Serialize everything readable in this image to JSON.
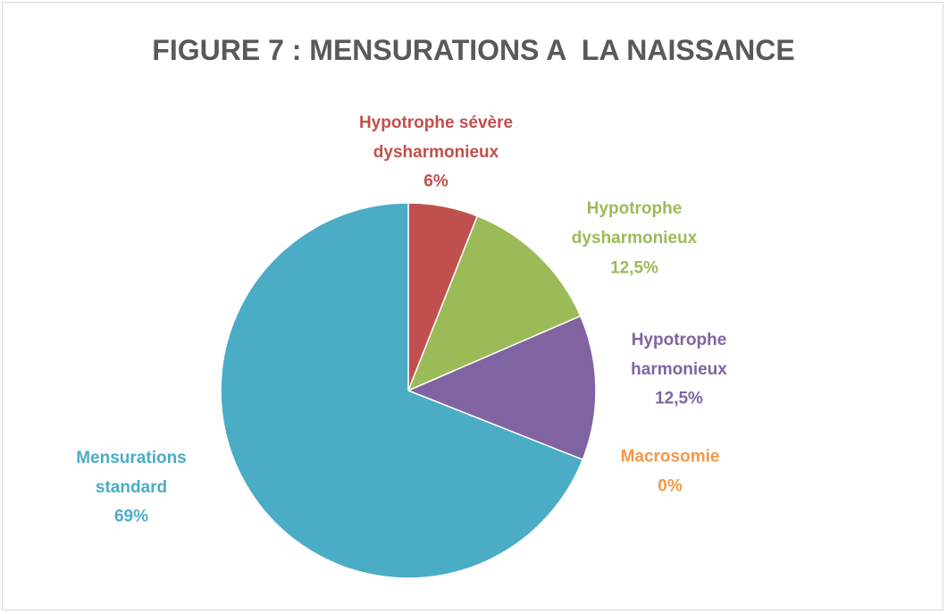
{
  "chart_data": {
    "type": "pie",
    "title": "FIGURE 7 : MENSURATIONS A  LA NAISSANCE",
    "categories": [
      "Hypotrophe sévère\ndysharmonieux",
      "Hypotrophe\ndysharmonieux",
      "Hypotrophe\nharmonieux",
      "Macrosomie",
      "Mensurations\nstandard"
    ],
    "values": [
      6,
      12.5,
      12.5,
      0,
      69
    ],
    "value_labels": [
      "6%",
      "12,5%",
      "12,5%",
      "0%",
      "69%"
    ],
    "colors": [
      "#c0504d",
      "#9bbb59",
      "#8064a2",
      "#f79646",
      "#4bacc6"
    ]
  }
}
